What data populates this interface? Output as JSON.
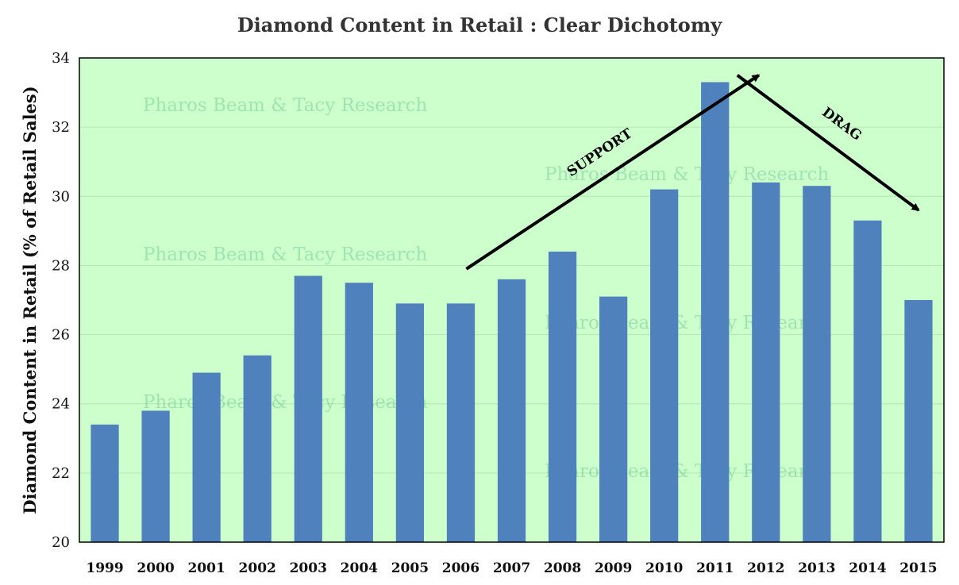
{
  "chart_data": {
    "type": "bar",
    "title": "Diamond Content in Retail : Clear Dichotomy",
    "ylabel": "Diamond Content in Retail (% of Retail Sales)",
    "xlabel": "",
    "categories": [
      "1999",
      "2000",
      "2001",
      "2002",
      "2003",
      "2004",
      "2005",
      "2006",
      "2007",
      "2008",
      "2009",
      "2010",
      "2011",
      "2012",
      "2013",
      "2014",
      "2015"
    ],
    "values": [
      23.4,
      23.8,
      24.9,
      25.4,
      27.7,
      27.5,
      26.9,
      26.9,
      27.6,
      28.4,
      27.1,
      30.2,
      33.3,
      30.4,
      30.3,
      29.3,
      27.0
    ],
    "ylim": [
      20,
      34
    ],
    "yticks": [
      "20",
      "22",
      "24",
      "26",
      "28",
      "30",
      "32",
      "34"
    ],
    "grid": true,
    "colors": {
      "bar": "#4f81bd",
      "plot_bg": "#ccffcc",
      "gridline": "#b3e6b3",
      "axis": "#000000"
    },
    "annotations": [
      {
        "text": "SUPPORT",
        "from_category": "2006",
        "to_category": "2011",
        "from_value": 27.9,
        "to_value": 33.5
      },
      {
        "text": "DRAG",
        "from_category": "2011",
        "to_category": "2015",
        "from_value": 33.5,
        "to_value": 29.6
      }
    ],
    "watermark": "Pharos Beam & Tacy Research"
  }
}
